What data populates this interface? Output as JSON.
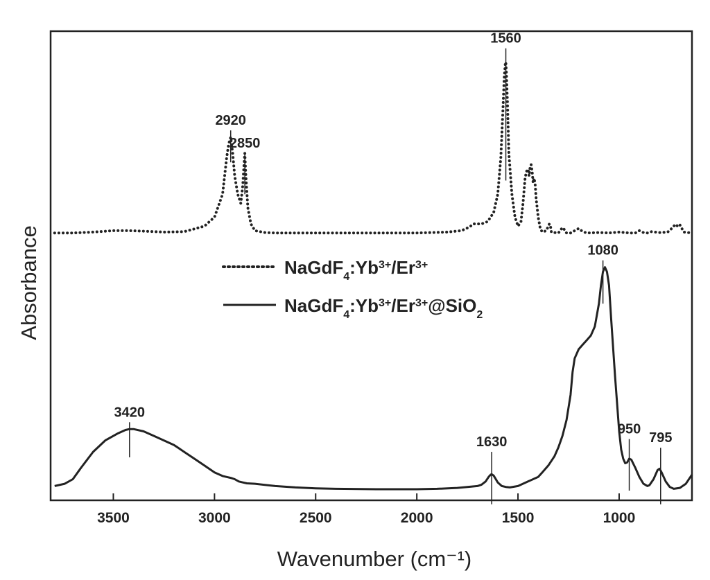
{
  "chart_data": {
    "type": "line",
    "xlabel": "Wavenumber (cm⁻¹)",
    "ylabel": "Absorbance",
    "xlim": [
      3810,
      640
    ],
    "x_reversed": true,
    "xticks": [
      3500,
      3000,
      2500,
      2000,
      1500,
      1000
    ],
    "ylim": [
      0,
      1.0
    ],
    "y_ticks_shown": false,
    "grid": false,
    "legend_position": "center",
    "series": [
      {
        "name": "NaGdF4:Yb3+/Er3+",
        "legend_parts": {
          "a": "NaGdF",
          "b": "4",
          "c": ":Yb",
          "d": "3+",
          "e": "/Er",
          "f": "3+",
          "g": ""
        },
        "line_style": "dotted",
        "color": "#222222",
        "x": [
          3790,
          3700,
          3600,
          3500,
          3420,
          3350,
          3250,
          3150,
          3050,
          3000,
          2960,
          2940,
          2930,
          2920,
          2910,
          2900,
          2885,
          2870,
          2860,
          2855,
          2850,
          2845,
          2835,
          2820,
          2800,
          2750,
          2700,
          2500,
          2300,
          2000,
          1850,
          1780,
          1740,
          1720,
          1700,
          1680,
          1650,
          1620,
          1600,
          1585,
          1575,
          1568,
          1563,
          1560,
          1557,
          1552,
          1545,
          1530,
          1515,
          1500,
          1485,
          1475,
          1465,
          1458,
          1450,
          1445,
          1440,
          1435,
          1430,
          1425,
          1420,
          1415,
          1410,
          1400,
          1390,
          1380,
          1360,
          1345,
          1340,
          1335,
          1320,
          1300,
          1280,
          1270,
          1260,
          1240,
          1200,
          1180,
          1160,
          1100,
          1050,
          1000,
          950,
          920,
          900,
          880,
          860,
          840,
          800,
          760,
          740,
          730,
          720,
          710,
          700,
          690,
          680,
          660,
          640
        ],
        "y": [
          0.565,
          0.565,
          0.567,
          0.57,
          0.57,
          0.569,
          0.567,
          0.568,
          0.58,
          0.6,
          0.65,
          0.73,
          0.76,
          0.775,
          0.74,
          0.69,
          0.65,
          0.63,
          0.67,
          0.71,
          0.74,
          0.69,
          0.62,
          0.585,
          0.57,
          0.566,
          0.565,
          0.565,
          0.565,
          0.565,
          0.567,
          0.57,
          0.578,
          0.585,
          0.585,
          0.585,
          0.59,
          0.61,
          0.65,
          0.73,
          0.83,
          0.905,
          0.935,
          0.94,
          0.915,
          0.85,
          0.74,
          0.65,
          0.6,
          0.58,
          0.59,
          0.63,
          0.685,
          0.7,
          0.705,
          0.69,
          0.71,
          0.715,
          0.7,
          0.675,
          0.685,
          0.67,
          0.64,
          0.6,
          0.575,
          0.567,
          0.57,
          0.585,
          0.582,
          0.567,
          0.566,
          0.565,
          0.577,
          0.572,
          0.565,
          0.565,
          0.575,
          0.568,
          0.565,
          0.566,
          0.565,
          0.567,
          0.565,
          0.565,
          0.57,
          0.566,
          0.565,
          0.568,
          0.566,
          0.567,
          0.575,
          0.58,
          0.584,
          0.579,
          0.583,
          0.575,
          0.567,
          0.566,
          0.565
        ]
      },
      {
        "name": "NaGdF4:Yb3+/Er3+@SiO2",
        "legend_parts": {
          "a": "NaGdF",
          "b": "4",
          "c": ":Yb",
          "d": "3+",
          "e": "/Er",
          "f": "3+",
          "g": "@SiO",
          "h": "2"
        },
        "line_style": "solid",
        "color": "#222222",
        "x": [
          3790,
          3740,
          3700,
          3660,
          3600,
          3540,
          3480,
          3440,
          3420,
          3400,
          3350,
          3300,
          3250,
          3200,
          3150,
          3100,
          3050,
          3000,
          2960,
          2940,
          2920,
          2900,
          2880,
          2860,
          2840,
          2800,
          2700,
          2600,
          2500,
          2400,
          2200,
          2000,
          1900,
          1800,
          1750,
          1700,
          1680,
          1660,
          1645,
          1635,
          1630,
          1620,
          1600,
          1580,
          1560,
          1540,
          1500,
          1450,
          1400,
          1380,
          1350,
          1320,
          1300,
          1280,
          1260,
          1240,
          1230,
          1220,
          1200,
          1180,
          1160,
          1140,
          1120,
          1100,
          1090,
          1080,
          1070,
          1060,
          1050,
          1040,
          1020,
          1000,
          990,
          980,
          970,
          960,
          950,
          940,
          920,
          900,
          880,
          860,
          850,
          830,
          810,
          800,
          790,
          770,
          750,
          730,
          700,
          670,
          640
        ],
        "y": [
          0.01,
          0.015,
          0.025,
          0.05,
          0.085,
          0.11,
          0.125,
          0.133,
          0.135,
          0.135,
          0.13,
          0.12,
          0.11,
          0.1,
          0.085,
          0.07,
          0.055,
          0.04,
          0.032,
          0.03,
          0.028,
          0.025,
          0.02,
          0.018,
          0.016,
          0.015,
          0.01,
          0.007,
          0.005,
          0.004,
          0.003,
          0.003,
          0.004,
          0.006,
          0.008,
          0.01,
          0.013,
          0.02,
          0.03,
          0.035,
          0.036,
          0.033,
          0.018,
          0.01,
          0.008,
          0.007,
          0.01,
          0.02,
          0.03,
          0.04,
          0.055,
          0.075,
          0.095,
          0.12,
          0.155,
          0.21,
          0.26,
          0.29,
          0.31,
          0.32,
          0.33,
          0.34,
          0.36,
          0.41,
          0.45,
          0.48,
          0.49,
          0.48,
          0.45,
          0.38,
          0.25,
          0.13,
          0.09,
          0.07,
          0.06,
          0.062,
          0.07,
          0.068,
          0.05,
          0.03,
          0.015,
          0.01,
          0.012,
          0.025,
          0.045,
          0.048,
          0.04,
          0.02,
          0.008,
          0.004,
          0.006,
          0.015,
          0.035
        ]
      }
    ],
    "annotations": [
      {
        "label": "2920",
        "x": 2920,
        "y_start": 0.72,
        "y_end": 0.79
      },
      {
        "label": "2850",
        "x": 2850,
        "y_start": 0.65,
        "y_end": 0.74
      },
      {
        "label": "1560",
        "x": 1560,
        "y_start": 0.68,
        "y_end": 0.97
      },
      {
        "label": "1080",
        "x": 1080,
        "y_start": 0.41,
        "y_end": 0.505
      },
      {
        "label": "3420",
        "x": 3420,
        "y_start": 0.073,
        "y_end": 0.15
      },
      {
        "label": "1630",
        "x": 1630,
        "y_start": -0.03,
        "y_end": 0.085
      },
      {
        "label": "950",
        "x": 950,
        "y_start": 0.0,
        "y_end": 0.113
      },
      {
        "label": "795",
        "x": 795,
        "y_start": -0.03,
        "y_end": 0.094
      }
    ]
  }
}
